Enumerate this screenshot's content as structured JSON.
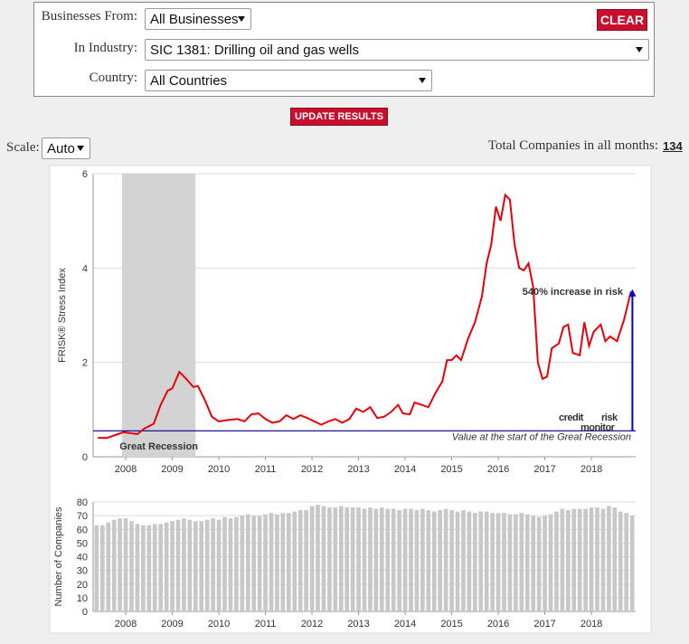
{
  "form": {
    "businesses_label": "Businesses From:",
    "businesses_value": "All Businesses",
    "clear": "CLEAR",
    "industry_label": "In Industry:",
    "industry_value": "SIC 1381: Drilling oil and gas wells",
    "country_label": "Country:",
    "country_value": "All Countries",
    "update": "UPDATE RESULTS",
    "scale_label": "Scale:",
    "scale_value": "Auto",
    "total_label": "Total Companies in all months:",
    "total_value": "134"
  },
  "chart_data": [
    {
      "type": "line",
      "ylabel": "FRISK® Stress Index",
      "color": "#e8000b",
      "xlim": [
        2007.3,
        2018.95
      ],
      "xticks": [
        2008,
        2009,
        2010,
        2011,
        2012,
        2013,
        2014,
        2015,
        2016,
        2017,
        2018
      ],
      "ylim": [
        0,
        6
      ],
      "yticks": [
        0,
        2,
        4,
        6
      ],
      "grid": true,
      "x": [
        2007.4,
        2007.6,
        2007.8,
        2007.95,
        2008.1,
        2008.25,
        2008.4,
        2008.6,
        2008.75,
        2008.9,
        2009.0,
        2009.15,
        2009.3,
        2009.45,
        2009.55,
        2009.7,
        2009.85,
        2010.0,
        2010.2,
        2010.4,
        2010.55,
        2010.7,
        2010.85,
        2011.0,
        2011.15,
        2011.3,
        2011.45,
        2011.6,
        2011.75,
        2011.9,
        2012.05,
        2012.2,
        2012.35,
        2012.5,
        2012.65,
        2012.8,
        2012.95,
        2013.1,
        2013.25,
        2013.4,
        2013.55,
        2013.7,
        2013.85,
        2013.95,
        2014.1,
        2014.2,
        2014.35,
        2014.5,
        2014.65,
        2014.8,
        2014.9,
        2015.0,
        2015.1,
        2015.2,
        2015.35,
        2015.5,
        2015.65,
        2015.75,
        2015.85,
        2015.95,
        2016.05,
        2016.15,
        2016.25,
        2016.35,
        2016.45,
        2016.55,
        2016.65,
        2016.75,
        2016.85,
        2016.95,
        2017.05,
        2017.15,
        2017.3,
        2017.4,
        2017.5,
        2017.6,
        2017.75,
        2017.85,
        2017.95,
        2018.05,
        2018.2,
        2018.3,
        2018.4,
        2018.55,
        2018.7,
        2018.85
      ],
      "values": [
        0.4,
        0.4,
        0.47,
        0.52,
        0.5,
        0.48,
        0.6,
        0.7,
        1.1,
        1.4,
        1.45,
        1.8,
        1.65,
        1.48,
        1.5,
        1.2,
        0.85,
        0.75,
        0.78,
        0.8,
        0.75,
        0.9,
        0.92,
        0.8,
        0.72,
        0.75,
        0.88,
        0.8,
        0.88,
        0.82,
        0.75,
        0.68,
        0.75,
        0.8,
        0.72,
        0.8,
        1.02,
        0.95,
        1.05,
        0.82,
        0.85,
        0.95,
        1.1,
        0.92,
        0.9,
        1.15,
        1.1,
        1.05,
        1.35,
        1.6,
        2.05,
        2.05,
        2.15,
        2.05,
        2.5,
        2.85,
        3.4,
        4.1,
        4.5,
        5.3,
        5.0,
        5.55,
        5.45,
        4.5,
        4.0,
        3.95,
        4.1,
        3.6,
        2.0,
        1.65,
        1.7,
        2.3,
        2.4,
        2.75,
        2.8,
        2.2,
        2.15,
        2.85,
        2.35,
        2.65,
        2.8,
        2.45,
        2.55,
        2.45,
        2.9,
        3.5
      ],
      "shade": [
        2007.92,
        2009.5
      ],
      "shade_color": "#d3d3d3",
      "shade_label": "Great Recession",
      "baseline": 0.55,
      "baseline_color": "#00008b",
      "baseline_label": "Value at the start of the Great Recession",
      "arrow": {
        "x": 2018.88,
        "from": 0.55,
        "to": 3.55
      },
      "arrow_color": "#0000cc",
      "arrow_label": "540% increase in risk",
      "logo": [
        "credit",
        "risk",
        "monitor"
      ]
    },
    {
      "type": "bar",
      "ylabel": "Number of Companies",
      "color": "#c8c8c8",
      "xlim": [
        2007.3,
        2018.95
      ],
      "xticks": [
        2008,
        2009,
        2010,
        2011,
        2012,
        2013,
        2014,
        2015,
        2016,
        2017,
        2018
      ],
      "ylim": [
        0,
        80
      ],
      "yticks": [
        0,
        10,
        20,
        30,
        40,
        50,
        60,
        70,
        80
      ],
      "grid": true,
      "x": [
        2007.375,
        2007.5,
        2007.625,
        2007.75,
        2007.875,
        2008.0,
        2008.125,
        2008.25,
        2008.375,
        2008.5,
        2008.625,
        2008.75,
        2008.875,
        2009.0,
        2009.125,
        2009.25,
        2009.375,
        2009.5,
        2009.625,
        2009.75,
        2009.875,
        2010.0,
        2010.125,
        2010.25,
        2010.375,
        2010.5,
        2010.625,
        2010.75,
        2010.875,
        2011.0,
        2011.125,
        2011.25,
        2011.375,
        2011.5,
        2011.625,
        2011.75,
        2011.875,
        2012.0,
        2012.125,
        2012.25,
        2012.375,
        2012.5,
        2012.625,
        2012.75,
        2012.875,
        2013.0,
        2013.125,
        2013.25,
        2013.375,
        2013.5,
        2013.625,
        2013.75,
        2013.875,
        2014.0,
        2014.125,
        2014.25,
        2014.375,
        2014.5,
        2014.625,
        2014.75,
        2014.875,
        2015.0,
        2015.125,
        2015.25,
        2015.375,
        2015.5,
        2015.625,
        2015.75,
        2015.875,
        2016.0,
        2016.125,
        2016.25,
        2016.375,
        2016.5,
        2016.625,
        2016.75,
        2016.875,
        2017.0,
        2017.125,
        2017.25,
        2017.375,
        2017.5,
        2017.625,
        2017.75,
        2017.875,
        2018.0,
        2018.125,
        2018.25,
        2018.375,
        2018.5,
        2018.625,
        2018.75,
        2018.875
      ],
      "values": [
        63,
        63,
        65,
        67,
        68,
        68,
        66,
        64,
        63,
        63,
        64,
        64,
        65,
        66,
        67,
        68,
        67,
        66,
        66,
        67,
        68,
        67,
        69,
        68,
        69,
        70,
        71,
        70,
        70,
        71,
        72,
        71,
        72,
        72,
        73,
        74,
        74,
        77,
        78,
        77,
        76,
        76,
        77,
        76,
        76,
        76,
        75,
        76,
        75,
        76,
        75,
        75,
        74,
        75,
        75,
        74,
        75,
        74,
        73,
        74,
        75,
        74,
        73,
        74,
        73,
        72,
        73,
        73,
        72,
        72,
        72,
        71,
        71,
        72,
        71,
        70,
        69,
        70,
        71,
        73,
        75,
        74,
        75,
        75,
        75,
        76,
        76,
        75,
        77,
        76,
        73,
        72,
        70
      ]
    }
  ]
}
